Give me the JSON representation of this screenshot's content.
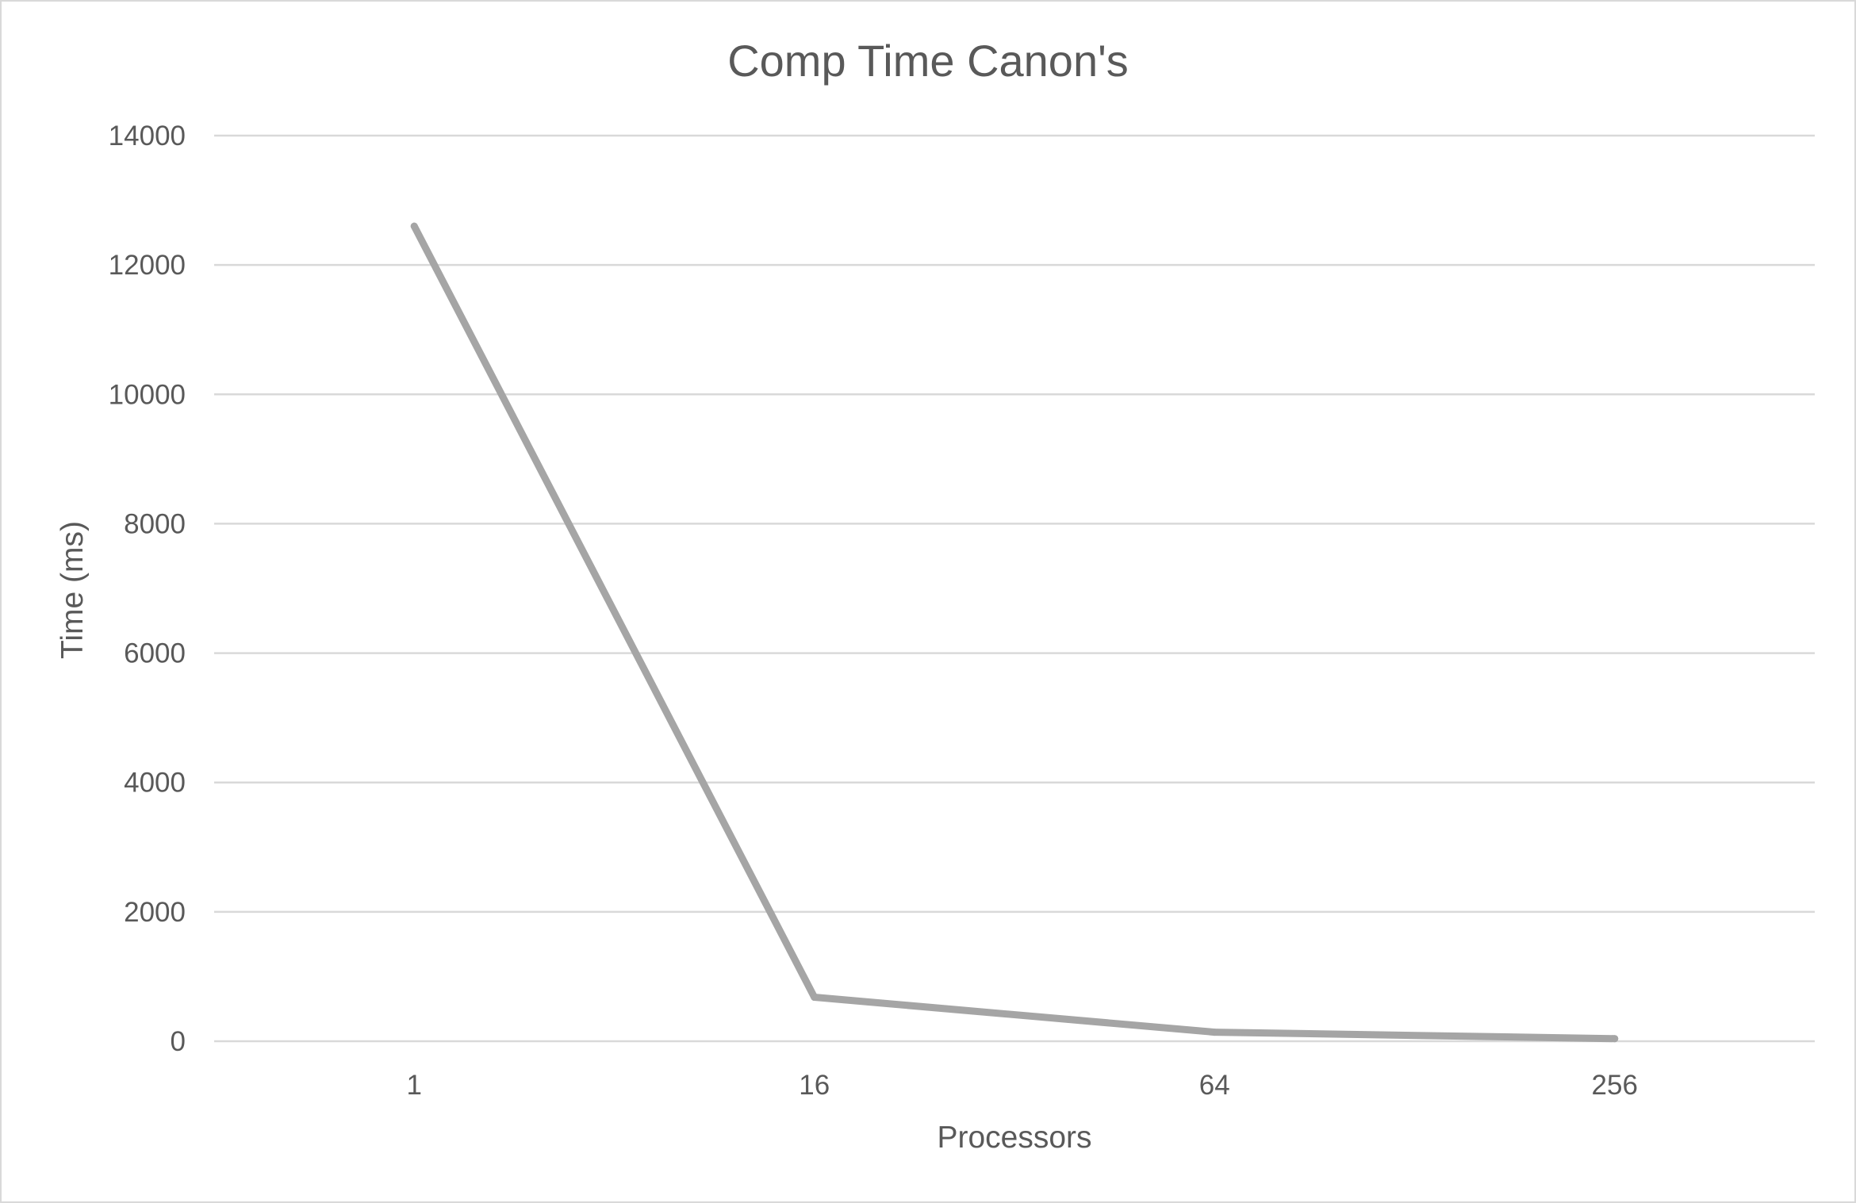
{
  "chart_data": {
    "type": "line",
    "title": "Comp Time Canon's",
    "xlabel": "Processors",
    "ylabel": "Time (ms)",
    "categories": [
      "1",
      "16",
      "64",
      "256"
    ],
    "series": [
      {
        "values": [
          12600,
          680,
          140,
          40
        ]
      }
    ],
    "ylim": [
      0,
      14000
    ],
    "yticks": [
      0,
      2000,
      4000,
      6000,
      8000,
      10000,
      12000,
      14000
    ],
    "grid": true,
    "legend": "none",
    "colors": {
      "series": "#a5a5a5",
      "grid": "#d9d9d9",
      "text": "#595959"
    }
  }
}
